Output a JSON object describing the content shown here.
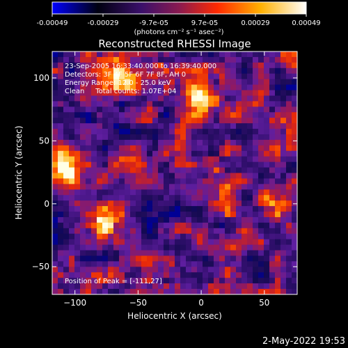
{
  "colorbar": {
    "ticks": [
      "-0.00049",
      "-0.00029",
      "-9.7e-05",
      "9.7e-05",
      "0.00029",
      "0.00049"
    ],
    "units": "(photons cm⁻² s⁻¹ asec⁻²)",
    "colors": [
      "#0000ff",
      "#000000",
      "#5a1a8a",
      "#ff2a00",
      "#ffcc00",
      "#ffffff"
    ]
  },
  "chart_data": {
    "type": "heatmap",
    "title": "Reconstructed RHESSI Image",
    "xlabel": "Heliocentric X (arcsec)",
    "ylabel": "Heliocentric Y (arcsec)",
    "xlim": [
      -118,
      76
    ],
    "ylim": [
      -72,
      121
    ],
    "xticks": [
      -100,
      -50,
      0,
      50
    ],
    "yticks": [
      -50,
      0,
      50,
      100
    ],
    "annotations": [
      "23-Sep-2005 16:33:40.000 to 16:39:40.000",
      "Detectors: 3F 4F 5F 6F 7F 8F, AH 0",
      "Energy Range: 12.0 - 25.0 keV",
      "Clean     Total counts: 1.07E+04"
    ],
    "peak_label": "Position of Peak = [-111,27]",
    "peak_position": [
      -111,
      27
    ],
    "bright_regions": [
      {
        "x": -111,
        "y": 27,
        "level": "peak"
      },
      {
        "x": -65,
        "y": 98,
        "level": "high"
      },
      {
        "x": 0,
        "y": 85,
        "level": "high"
      },
      {
        "x": 15,
        "y": 10,
        "level": "medium"
      },
      {
        "x": 60,
        "y": 0,
        "level": "medium"
      },
      {
        "x": -75,
        "y": -15,
        "level": "medium"
      },
      {
        "x": 20,
        "y": -40,
        "level": "medium"
      }
    ]
  },
  "timestamp": "2-May-2022 19:53"
}
